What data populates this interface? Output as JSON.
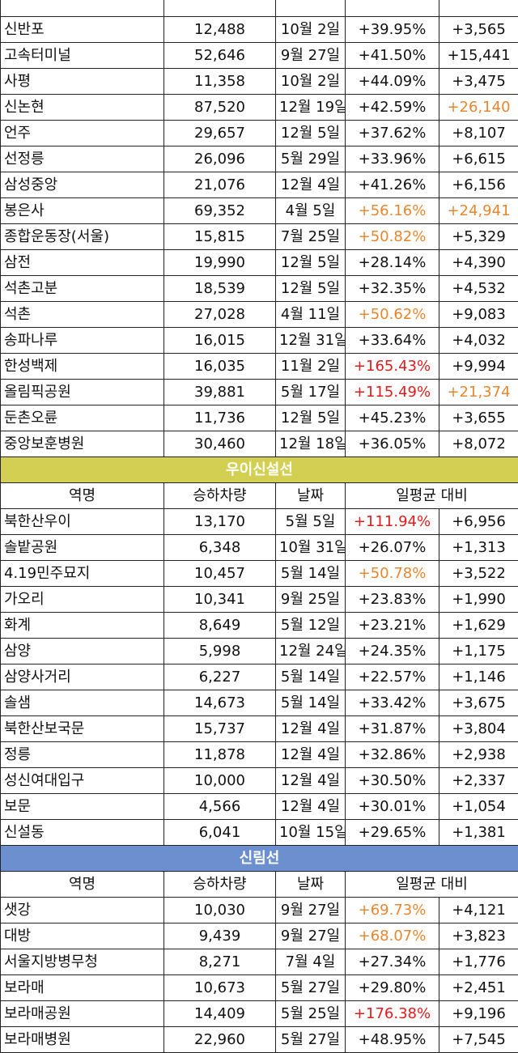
{
  "colors": {
    "orange": "#e8862f",
    "red": "#e41b1b"
  },
  "top_row": {
    "name": "",
    "count": "",
    "date": "",
    "pct": "",
    "diff": ""
  },
  "groups": [
    {
      "title": "",
      "color": "",
      "headers": null,
      "rows": [
        {
          "name": "신반포",
          "count": "12,488",
          "date": "10월 2일",
          "pct": "+39.95%",
          "diff": "+3,565"
        },
        {
          "name": "고속터미널",
          "count": "52,646",
          "date": "9월 27일",
          "pct": "+41.50%",
          "diff": "+15,441"
        },
        {
          "name": "사평",
          "count": "11,358",
          "date": "10월 2일",
          "pct": "+44.09%",
          "diff": "+3,475"
        },
        {
          "name": "신논현",
          "count": "87,520",
          "date": "12월 19일",
          "pct": "+42.59%",
          "diff": "+26,140",
          "diff_hl": "orange"
        },
        {
          "name": "언주",
          "count": "29,657",
          "date": "12월 5일",
          "pct": "+37.62%",
          "diff": "+8,107"
        },
        {
          "name": "선정릉",
          "count": "26,096",
          "date": "5월 29일",
          "pct": "+33.96%",
          "diff": "+6,615"
        },
        {
          "name": "삼성중앙",
          "count": "21,076",
          "date": "12월 4일",
          "pct": "+41.26%",
          "diff": "+6,156"
        },
        {
          "name": "봉은사",
          "count": "69,352",
          "date": "4월 5일",
          "pct": "+56.16%",
          "pct_hl": "orange",
          "diff": "+24,941",
          "diff_hl": "orange"
        },
        {
          "name": "종합운동장(서울)",
          "count": "15,815",
          "date": "7월 25일",
          "pct": "+50.82%",
          "pct_hl": "orange",
          "diff": "+5,329"
        },
        {
          "name": "삼전",
          "count": "19,990",
          "date": "12월 5일",
          "pct": "+28.14%",
          "diff": "+4,390"
        },
        {
          "name": "석촌고분",
          "count": "18,539",
          "date": "12월 5일",
          "pct": "+32.35%",
          "diff": "+4,532"
        },
        {
          "name": "석촌",
          "count": "27,028",
          "date": "4월 11일",
          "pct": "+50.62%",
          "pct_hl": "orange",
          "diff": "+9,083"
        },
        {
          "name": "송파나루",
          "count": "16,015",
          "date": "12월 31일",
          "pct": "+33.64%",
          "diff": "+4,032"
        },
        {
          "name": "한성백제",
          "count": "16,035",
          "date": "11월 2일",
          "pct": "+165.43%",
          "pct_hl": "red",
          "diff": "+9,994"
        },
        {
          "name": "올림픽공원",
          "count": "39,881",
          "date": "5월 17일",
          "pct": "+115.49%",
          "pct_hl": "red",
          "diff": "+21,374",
          "diff_hl": "orange"
        },
        {
          "name": "둔촌오륜",
          "count": "11,736",
          "date": "12월 5일",
          "pct": "+45.23%",
          "diff": "+3,655"
        },
        {
          "name": "중앙보훈병원",
          "count": "30,460",
          "date": "12월 18일",
          "pct": "+36.05%",
          "diff": "+8,072"
        }
      ]
    },
    {
      "title": "우이신설선",
      "color": "#d3cf53",
      "headers": {
        "name": "역명",
        "count": "승하차량",
        "date": "날짜",
        "avg": "일평균 대비"
      },
      "rows": [
        {
          "name": "북한산우이",
          "count": "13,170",
          "date": "5월 5일",
          "pct": "+111.94%",
          "pct_hl": "red",
          "diff": "+6,956"
        },
        {
          "name": "솔밭공원",
          "count": "6,348",
          "date": "10월 31일",
          "pct": "+26.07%",
          "diff": "+1,313"
        },
        {
          "name": "4.19민주묘지",
          "count": "10,457",
          "date": "5월 14일",
          "pct": "+50.78%",
          "pct_hl": "orange",
          "diff": "+3,522"
        },
        {
          "name": "가오리",
          "count": "10,341",
          "date": "9월 25일",
          "pct": "+23.83%",
          "diff": "+1,990"
        },
        {
          "name": "화계",
          "count": "8,649",
          "date": "5월 12일",
          "pct": "+23.21%",
          "diff": "+1,629"
        },
        {
          "name": "삼양",
          "count": "5,998",
          "date": "12월 24일",
          "pct": "+24.35%",
          "diff": "+1,175"
        },
        {
          "name": "삼양사거리",
          "count": "6,227",
          "date": "5월 14일",
          "pct": "+22.57%",
          "diff": "+1,146"
        },
        {
          "name": "솔샘",
          "count": "14,673",
          "date": "5월 14일",
          "pct": "+33.42%",
          "diff": "+3,675"
        },
        {
          "name": "북한산보국문",
          "count": "15,737",
          "date": "12월 4일",
          "pct": "+31.87%",
          "diff": "+3,804"
        },
        {
          "name": "정릉",
          "count": "11,878",
          "date": "12월 4일",
          "pct": "+32.86%",
          "diff": "+2,938"
        },
        {
          "name": "성신여대입구",
          "count": "10,000",
          "date": "12월 4일",
          "pct": "+30.50%",
          "diff": "+2,337"
        },
        {
          "name": "보문",
          "count": "4,566",
          "date": "12월 4일",
          "pct": "+30.01%",
          "diff": "+1,054"
        },
        {
          "name": "신설동",
          "count": "6,041",
          "date": "10월 15일",
          "pct": "+29.65%",
          "diff": "+1,381"
        }
      ]
    },
    {
      "title": "신림선",
      "color": "#6b8fcf",
      "headers": {
        "name": "역명",
        "count": "승하차량",
        "date": "날짜",
        "avg": "일평균 대비"
      },
      "rows": [
        {
          "name": "샛강",
          "count": "10,030",
          "date": "9월 27일",
          "pct": "+69.73%",
          "pct_hl": "orange",
          "diff": "+4,121"
        },
        {
          "name": "대방",
          "count": "9,439",
          "date": "9월 27일",
          "pct": "+68.07%",
          "pct_hl": "orange",
          "diff": "+3,823"
        },
        {
          "name": "서울지방병무청",
          "count": "8,271",
          "date": "7월 4일",
          "pct": "+27.34%",
          "diff": "+1,776"
        },
        {
          "name": "보라매",
          "count": "10,673",
          "date": "5월 27일",
          "pct": "+29.80%",
          "diff": "+2,451"
        },
        {
          "name": "보라매공원",
          "count": "14,409",
          "date": "5월 25일",
          "pct": "+176.38%",
          "pct_hl": "red",
          "diff": "+9,196"
        },
        {
          "name": "보라매병원",
          "count": "22,960",
          "date": "5월 27일",
          "pct": "+48.95%",
          "diff": "+7,545"
        }
      ]
    }
  ]
}
